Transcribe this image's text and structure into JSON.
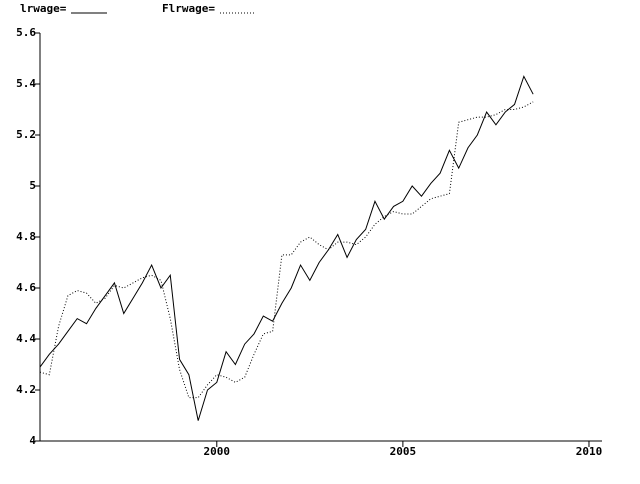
{
  "chart_data": {
    "type": "line",
    "x": [
      1995.25,
      1995.5,
      1995.75,
      1996,
      1996.25,
      1996.5,
      1996.75,
      1997,
      1997.25,
      1997.5,
      1997.75,
      1998,
      1998.25,
      1998.5,
      1998.75,
      1999,
      1999.25,
      1999.5,
      1999.75,
      2000,
      2000.25,
      2000.5,
      2000.75,
      2001,
      2001.25,
      2001.5,
      2001.75,
      2002,
      2002.25,
      2002.5,
      2002.75,
      2003,
      2003.25,
      2003.5,
      2003.75,
      2004,
      2004.25,
      2004.5,
      2004.75,
      2005,
      2005.25,
      2005.5,
      2005.75,
      2006,
      2006.25,
      2006.5,
      2006.75,
      2007,
      2007.25,
      2007.5,
      2007.75,
      2008,
      2008.25,
      2008.5
    ],
    "series": [
      {
        "name": "lrwage=",
        "color": "#000000",
        "dash": "solid",
        "values": [
          4.29,
          4.34,
          4.38,
          4.43,
          4.48,
          4.46,
          4.52,
          4.57,
          4.62,
          4.5,
          4.56,
          4.62,
          4.69,
          4.6,
          4.65,
          4.32,
          4.26,
          4.08,
          4.2,
          4.23,
          4.35,
          4.3,
          4.38,
          4.42,
          4.49,
          4.47,
          4.54,
          4.6,
          4.69,
          4.63,
          4.7,
          4.75,
          4.81,
          4.72,
          4.79,
          4.83,
          4.94,
          4.87,
          4.92,
          4.94,
          5.0,
          4.96,
          5.01,
          5.05,
          5.14,
          5.07,
          5.15,
          5.2,
          5.29,
          5.24,
          5.29,
          5.32,
          5.43,
          5.36
        ]
      },
      {
        "name": "Flrwage=",
        "color": "#000000",
        "dash": "dotted",
        "values": [
          4.27,
          4.26,
          4.45,
          4.57,
          4.59,
          4.58,
          4.54,
          4.56,
          4.61,
          4.6,
          4.62,
          4.64,
          4.65,
          4.63,
          4.48,
          4.28,
          4.17,
          4.17,
          4.22,
          4.26,
          4.25,
          4.23,
          4.25,
          4.34,
          4.42,
          4.43,
          4.73,
          4.73,
          4.78,
          4.8,
          4.77,
          4.75,
          4.78,
          4.78,
          4.77,
          4.8,
          4.85,
          4.88,
          4.9,
          4.89,
          4.89,
          4.92,
          4.95,
          4.96,
          4.97,
          5.25,
          5.26,
          5.27,
          5.27,
          5.28,
          5.3,
          5.3,
          5.31,
          5.33
        ]
      }
    ],
    "xlim": [
      1995.25,
      2010.35
    ],
    "xticks": [
      2000,
      2005,
      2010
    ],
    "ylim": [
      4,
      5.6
    ],
    "yticks": [
      4,
      4.2,
      4.4,
      4.6,
      4.8,
      5,
      5.2,
      5.4,
      5.6
    ]
  }
}
